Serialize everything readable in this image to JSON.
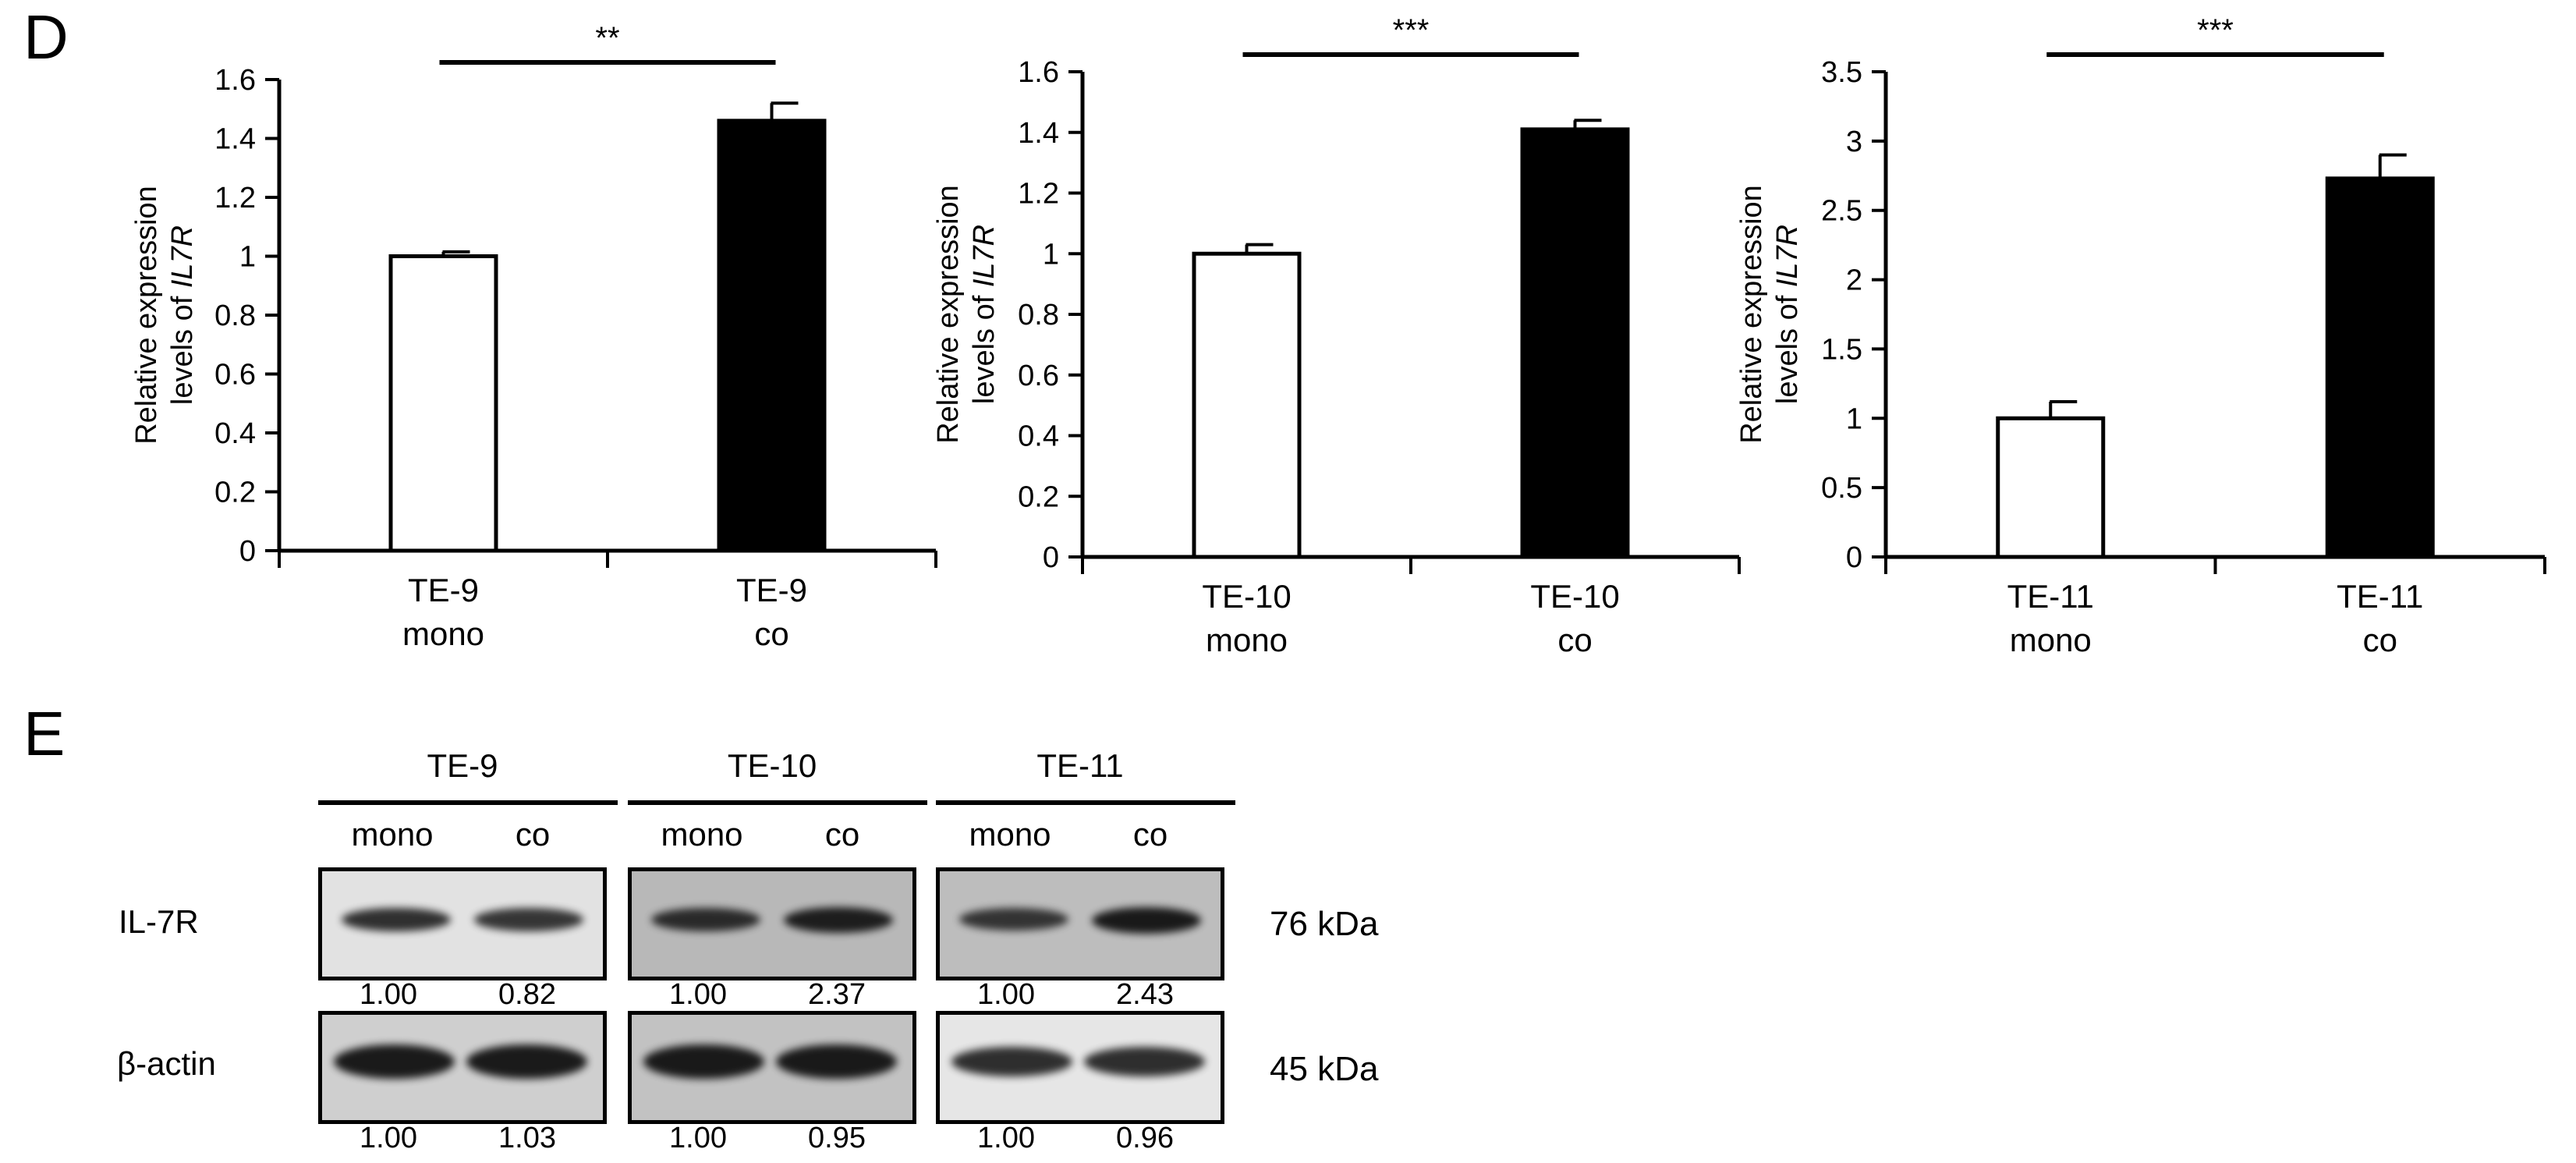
{
  "panel_d_letter": "D",
  "panel_e_letter": "E",
  "chart_data": [
    {
      "type": "bar",
      "ylabel_line1": "Relative expression",
      "ylabel_line2_prefix": "levels of ",
      "ylabel_gene": "IL7R",
      "ylim": [
        0,
        1.6
      ],
      "yticks": [
        "0",
        "0.2",
        "0.4",
        "0.6",
        "0.8",
        "1",
        "1.2",
        "1.4",
        "1.6"
      ],
      "categories": [
        [
          "TE-9",
          "mono"
        ],
        [
          "TE-9",
          "co"
        ]
      ],
      "values": [
        1.0,
        1.46
      ],
      "errors": [
        0.015,
        0.06
      ],
      "bar_colors": [
        "#ffffff",
        "#000000"
      ],
      "significance": "**",
      "grid": false
    },
    {
      "type": "bar",
      "ylabel_line1": "Relative expression",
      "ylabel_line2_prefix": "levels of ",
      "ylabel_gene": "IL7R",
      "ylim": [
        0,
        1.6
      ],
      "yticks": [
        "0",
        "0.2",
        "0.4",
        "0.6",
        "0.8",
        "1",
        "1.2",
        "1.4",
        "1.6"
      ],
      "categories": [
        [
          "TE-10",
          "mono"
        ],
        [
          "TE-10",
          "co"
        ]
      ],
      "values": [
        1.0,
        1.41
      ],
      "errors": [
        0.03,
        0.03
      ],
      "bar_colors": [
        "#ffffff",
        "#000000"
      ],
      "significance": "***",
      "grid": false
    },
    {
      "type": "bar",
      "ylabel_line1": "Relative expression",
      "ylabel_line2_prefix": "levels of ",
      "ylabel_gene": "IL7R",
      "ylim": [
        0,
        3.5
      ],
      "yticks": [
        "0",
        "0.5",
        "1",
        "1.5",
        "2",
        "2.5",
        "3",
        "3.5"
      ],
      "categories": [
        [
          "TE-11",
          "mono"
        ],
        [
          "TE-11",
          "co"
        ]
      ],
      "values": [
        1.0,
        2.73
      ],
      "errors": [
        0.12,
        0.17
      ],
      "bar_colors": [
        "#ffffff",
        "#000000"
      ],
      "significance": "***",
      "grid": false
    }
  ],
  "western_blot": {
    "groups": [
      {
        "name": "TE-9",
        "lanes": [
          "mono",
          "co"
        ],
        "il7r_quant": [
          "1.00",
          "0.82"
        ],
        "actin_quant": [
          "1.00",
          "1.03"
        ]
      },
      {
        "name": "TE-10",
        "lanes": [
          "mono",
          "co"
        ],
        "il7r_quant": [
          "1.00",
          "2.37"
        ],
        "actin_quant": [
          "1.00",
          "0.95"
        ]
      },
      {
        "name": "TE-11",
        "lanes": [
          "mono",
          "co"
        ],
        "il7r_quant": [
          "1.00",
          "2.43"
        ],
        "actin_quant": [
          "1.00",
          "0.96"
        ]
      }
    ],
    "row_labels": [
      "IL-7R",
      "β-actin"
    ],
    "sizes": [
      "76 kDa",
      "45 kDa"
    ],
    "il7r_band_intensity": [
      [
        0.8,
        0.75
      ],
      [
        0.8,
        0.95
      ],
      [
        0.7,
        1.0
      ]
    ],
    "actin_band_intensity": [
      [
        1.0,
        1.0
      ],
      [
        1.0,
        1.0
      ],
      [
        0.8,
        0.8
      ]
    ]
  }
}
